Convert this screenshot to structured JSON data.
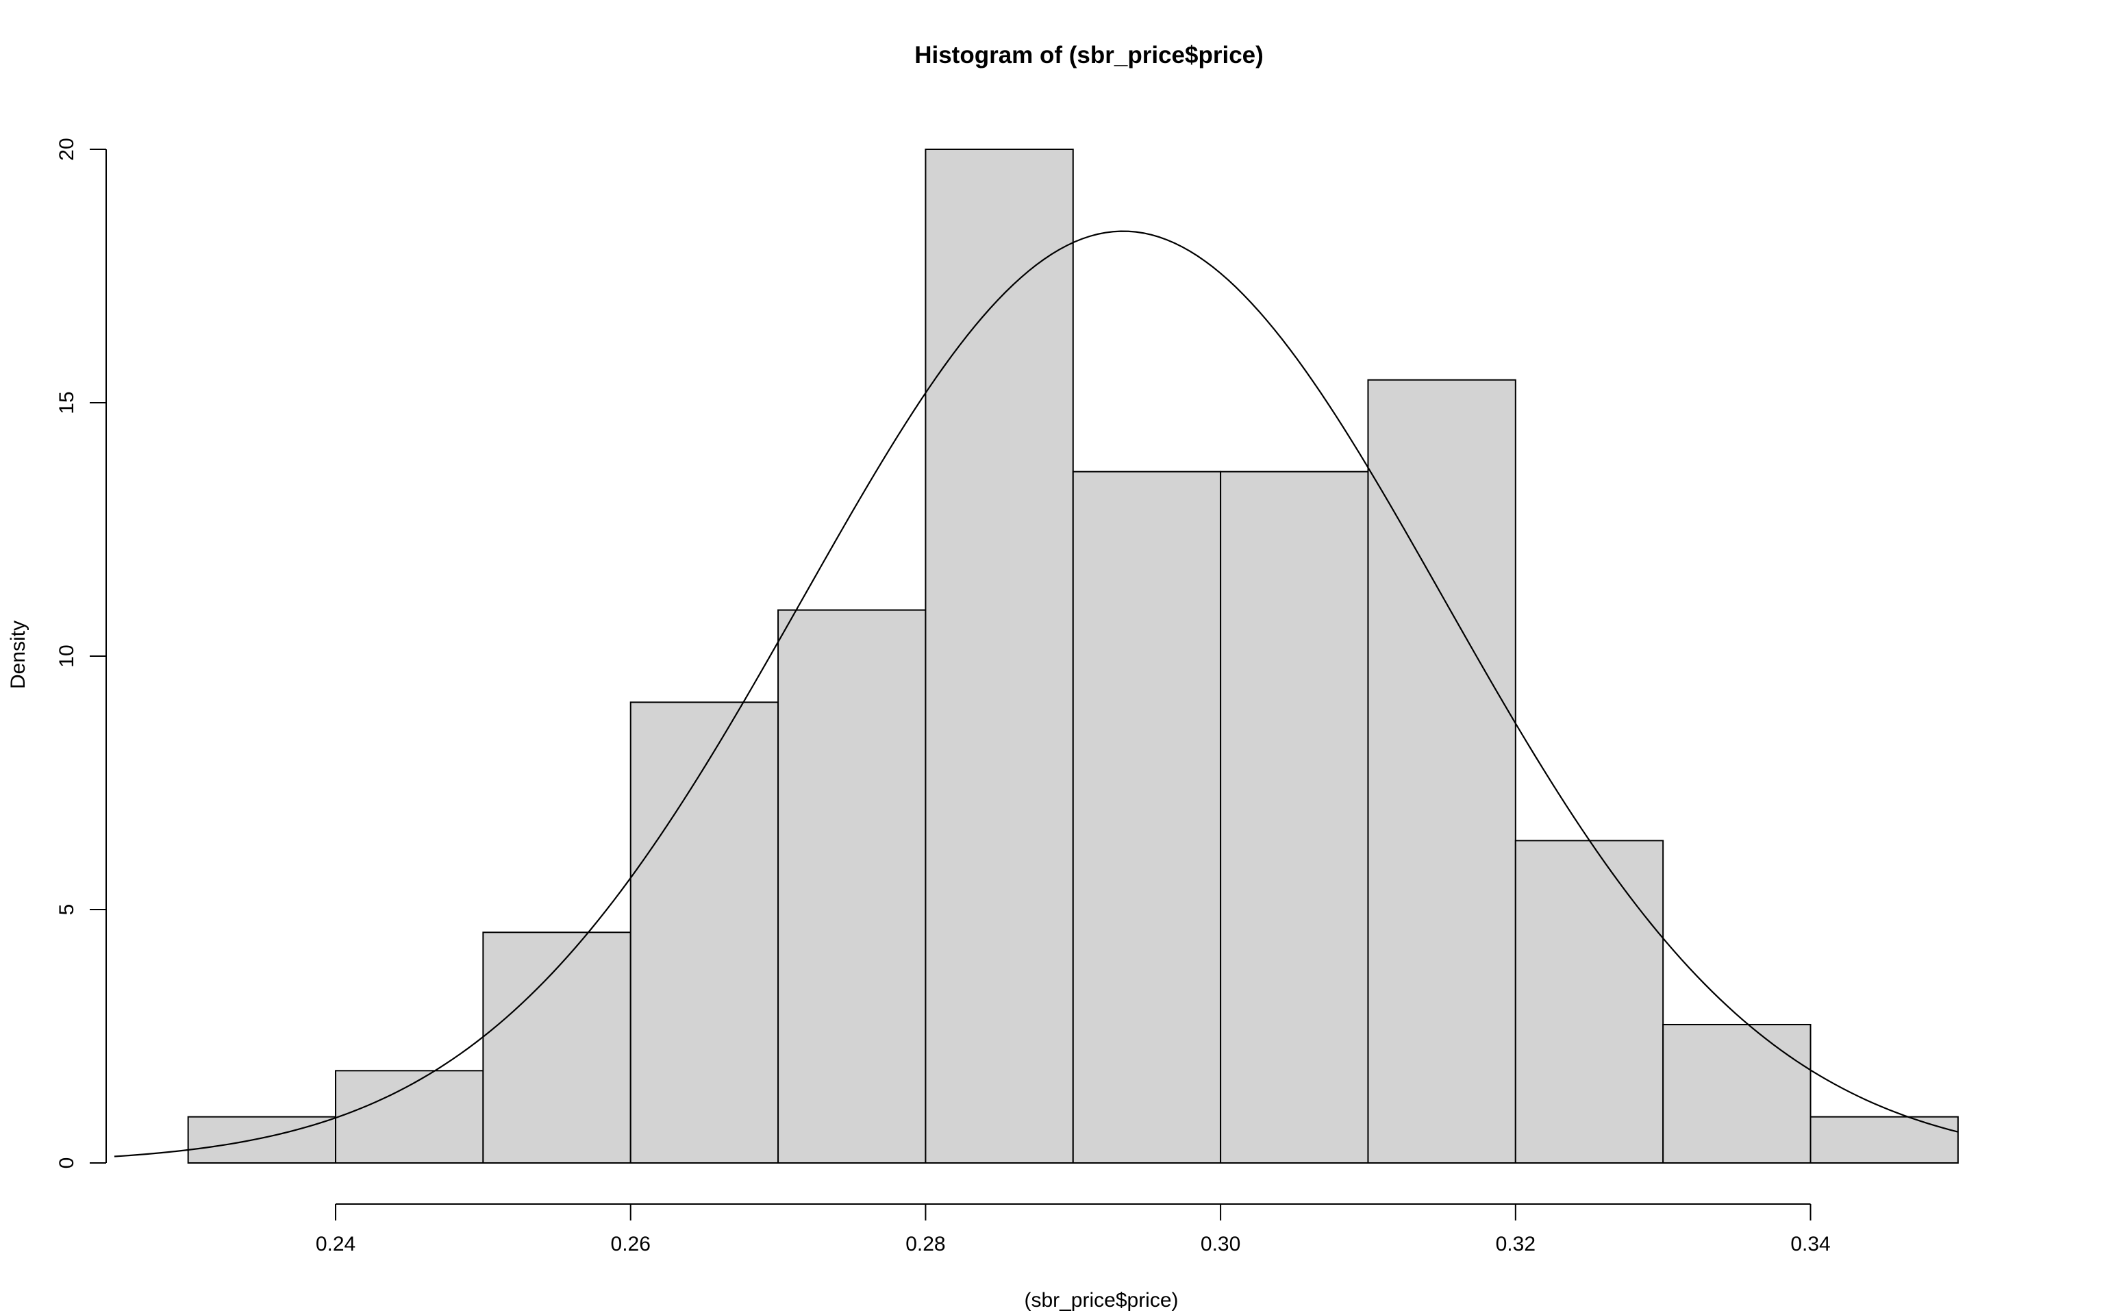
{
  "chart_data": {
    "type": "bar",
    "title": "Histogram of (sbr_price$price)",
    "xlabel": "(sbr_price$price)",
    "ylabel": "Density",
    "xlim": [
      0.225,
      0.354
    ],
    "ylim": [
      0,
      20
    ],
    "x_ticks": [
      0.24,
      0.26,
      0.28,
      0.3,
      0.32,
      0.34
    ],
    "x_tick_labels": [
      "0.24",
      "0.26",
      "0.28",
      "0.30",
      "0.32",
      "0.34"
    ],
    "y_ticks": [
      0,
      5,
      10,
      15,
      20
    ],
    "y_tick_labels": [
      "0",
      "5",
      "10",
      "15",
      "20"
    ],
    "bins": [
      {
        "x0": 0.23,
        "x1": 0.24,
        "density": 0.91
      },
      {
        "x0": 0.24,
        "x1": 0.25,
        "density": 1.82
      },
      {
        "x0": 0.25,
        "x1": 0.26,
        "density": 4.55
      },
      {
        "x0": 0.26,
        "x1": 0.27,
        "density": 9.09
      },
      {
        "x0": 0.27,
        "x1": 0.28,
        "density": 10.91
      },
      {
        "x0": 0.28,
        "x1": 0.29,
        "density": 20.0
      },
      {
        "x0": 0.29,
        "x1": 0.3,
        "density": 13.64
      },
      {
        "x0": 0.3,
        "x1": 0.31,
        "density": 13.64
      },
      {
        "x0": 0.31,
        "x1": 0.32,
        "density": 15.45
      },
      {
        "x0": 0.32,
        "x1": 0.33,
        "density": 6.36
      },
      {
        "x0": 0.33,
        "x1": 0.34,
        "density": 2.73
      },
      {
        "x0": 0.34,
        "x1": 0.35,
        "density": 0.91
      }
    ],
    "curve": {
      "kind": "normal",
      "mean": 0.2934,
      "sd": 0.0217,
      "x_from": 0.225,
      "x_to": 0.35
    },
    "bar_fill": "#d3d3d3",
    "line_color": "#000000",
    "grid": false
  }
}
